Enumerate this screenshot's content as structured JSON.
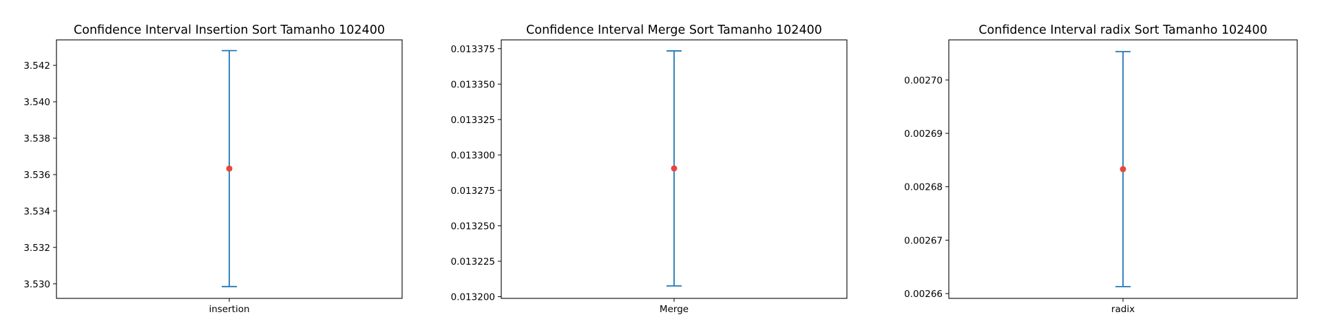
{
  "chart_data": [
    {
      "type": "errorbar",
      "title": "Confidence Interval Insertion Sort Tamanho 102400",
      "categories": [
        "insertion"
      ],
      "series": [
        {
          "values": [
            3.53633
          ],
          "lower": [
            3.52985
          ],
          "upper": [
            3.54281
          ]
        }
      ],
      "ylim": [
        3.5292,
        3.5434
      ],
      "yticks": [
        3.53,
        3.532,
        3.534,
        3.536,
        3.538,
        3.54,
        3.542
      ],
      "ytick_labels": [
        "3.530",
        "3.532",
        "3.534",
        "3.536",
        "3.538",
        "3.540",
        "3.542"
      ],
      "grid": false,
      "colors": {
        "errorbar": "#1f77b4",
        "mean": "#e8463a"
      }
    },
    {
      "type": "errorbar",
      "title": "Confidence Interval Merge Sort Tamanho 102400",
      "categories": [
        "Merge"
      ],
      "series": [
        {
          "values": [
            0.0132905
          ],
          "lower": [
            0.0132076
          ],
          "upper": [
            0.0133734
          ]
        }
      ],
      "ylim": [
        0.0131988,
        0.0133812
      ],
      "yticks": [
        0.0132,
        0.013225,
        0.01325,
        0.013275,
        0.0133,
        0.013325,
        0.01335,
        0.013375
      ],
      "ytick_labels": [
        "0.013200",
        "0.013225",
        "0.013250",
        "0.013275",
        "0.013300",
        "0.013325",
        "0.013350",
        "0.013375"
      ],
      "grid": false,
      "colors": {
        "errorbar": "#1f77b4",
        "mean": "#e8463a"
      }
    },
    {
      "type": "errorbar",
      "title": "Confidence Interval radix Sort Tamanho 102400",
      "categories": [
        "radix"
      ],
      "series": [
        {
          "values": [
            0.0026833
          ],
          "lower": [
            0.0026613
          ],
          "upper": [
            0.0027053
          ]
        }
      ],
      "ylim": [
        0.0026591,
        0.0027075
      ],
      "yticks": [
        0.00266,
        0.00267,
        0.00268,
        0.00269,
        0.0027
      ],
      "ytick_labels": [
        "0.00266",
        "0.00267",
        "0.00268",
        "0.00269",
        "0.00270"
      ],
      "grid": false,
      "colors": {
        "errorbar": "#1f77b4",
        "mean": "#e8463a"
      }
    }
  ]
}
